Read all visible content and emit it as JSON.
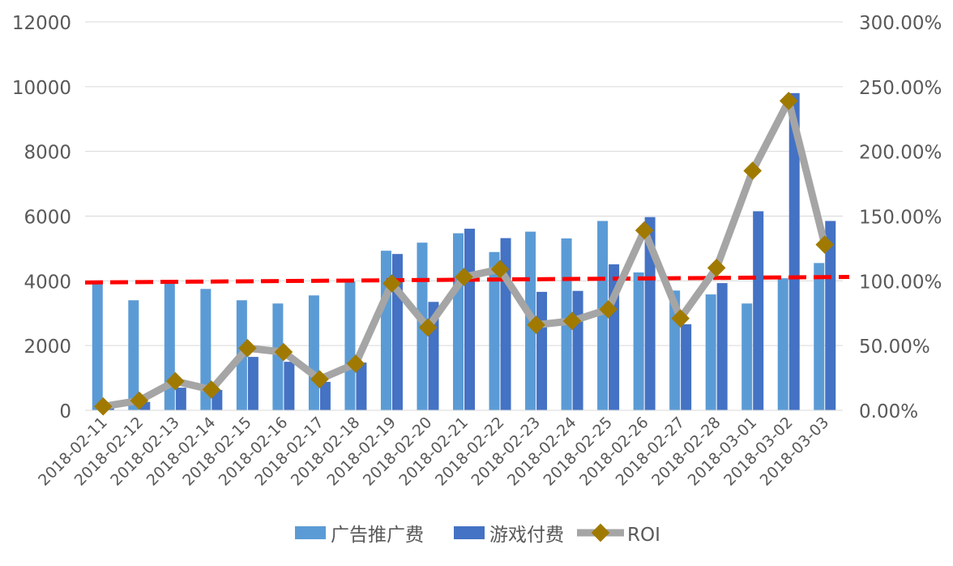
{
  "chart_data": {
    "type": "bar",
    "title": "",
    "categories": [
      "2018-02-11",
      "2018-02-12",
      "2018-02-13",
      "2018-02-14",
      "2018-02-15",
      "2018-02-16",
      "2018-02-17",
      "2018-02-18",
      "2018-02-19",
      "2018-02-20",
      "2018-02-21",
      "2018-02-22",
      "2018-02-23",
      "2018-02-24",
      "2018-02-25",
      "2018-02-26",
      "2018-02-27",
      "2018-02-28",
      "2018-03-01",
      "2018-03-02",
      "2018-03-03"
    ],
    "series": [
      {
        "name": "广告推广费",
        "type": "bar",
        "axis": "left",
        "color": "#5B9BD5",
        "values": [
          3950,
          3400,
          3930,
          3750,
          3400,
          3300,
          3550,
          3980,
          4930,
          5180,
          5470,
          4890,
          5520,
          5310,
          5850,
          4260,
          3700,
          3580,
          3300,
          4080,
          4550
        ]
      },
      {
        "name": "游戏付费",
        "type": "bar",
        "axis": "left",
        "color": "#4472C4",
        "values": [
          80,
          260,
          700,
          630,
          1650,
          1500,
          880,
          1475,
          4830,
          3350,
          5610,
          5320,
          3660,
          3690,
          4510,
          5970,
          2660,
          3930,
          6150,
          9800,
          5850
        ]
      },
      {
        "name": "ROI",
        "type": "line",
        "axis": "right",
        "color": "#A5A5A5",
        "marker_color": "#A07A00",
        "values": [
          3,
          7.5,
          22.5,
          16,
          48,
          45,
          24,
          36,
          98,
          64,
          103,
          109,
          66,
          69,
          78,
          139,
          71,
          110,
          185,
          239,
          128
        ]
      }
    ],
    "trendline": {
      "color": "#FF0000",
      "style": "dashed",
      "start_value": 3950,
      "end_value": 4120
    },
    "y_left": {
      "ylim": [
        0,
        12000
      ],
      "ticks": [
        "0",
        "2000",
        "4000",
        "6000",
        "8000",
        "10000",
        "12000"
      ]
    },
    "y_right": {
      "ylim": [
        0,
        300
      ],
      "ticks": [
        "0.00%",
        "50.00%",
        "100.00%",
        "150.00%",
        "200.00%",
        "250.00%",
        "300.00%"
      ]
    },
    "grid": true,
    "legend": {
      "placement": "bottom",
      "entries": [
        "广告推广费",
        "游戏付费",
        "ROI"
      ]
    }
  }
}
